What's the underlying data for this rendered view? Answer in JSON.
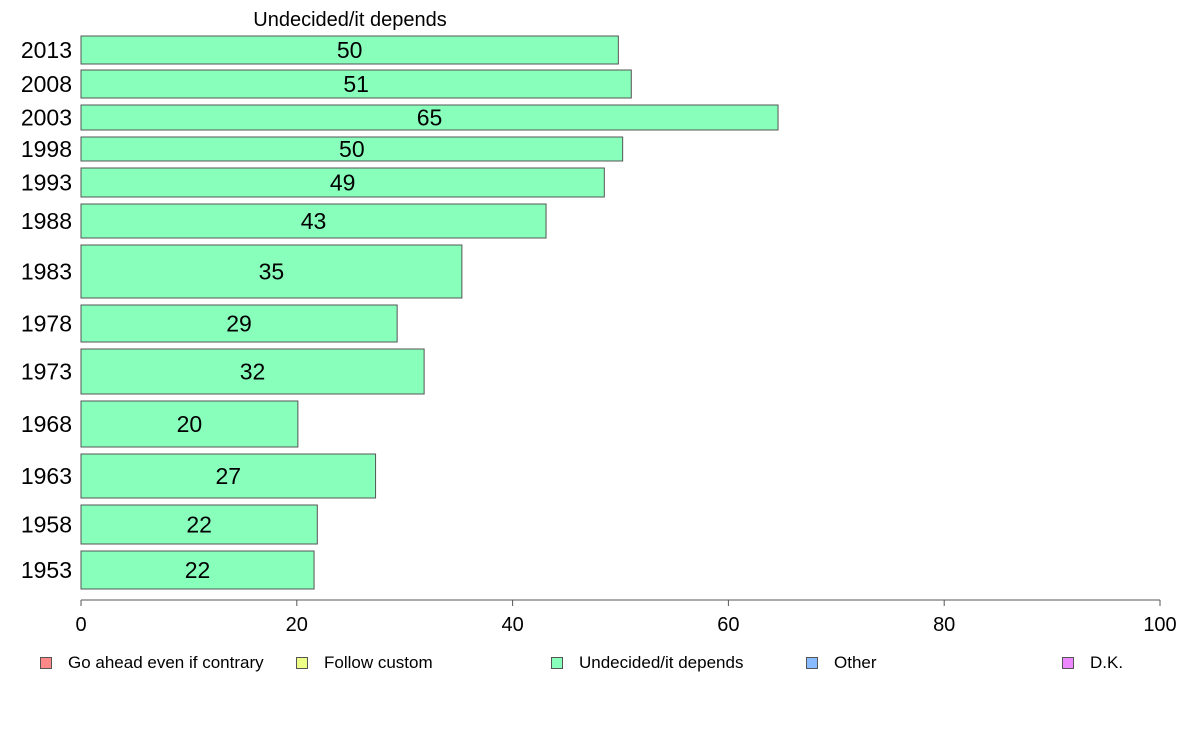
{
  "chart_data": {
    "type": "bar",
    "orientation": "horizontal",
    "title": "Undecided/it depends",
    "categories": [
      "2013",
      "2008",
      "2003",
      "1998",
      "1993",
      "1988",
      "1983",
      "1978",
      "1973",
      "1968",
      "1963",
      "1958",
      "1953"
    ],
    "series": [
      {
        "name": "Undecided/it depends",
        "values": [
          49.8,
          51.0,
          64.6,
          50.2,
          48.5,
          43.1,
          35.3,
          29.3,
          31.8,
          20.1,
          27.3,
          21.9,
          21.6
        ],
        "labels": [
          "50",
          "51",
          "65",
          "50",
          "49",
          "43",
          "35",
          "29",
          "32",
          "20",
          "27",
          "22",
          "22"
        ],
        "color": "#88ffbb"
      }
    ],
    "xlim": [
      0,
      100
    ],
    "xticks": [
      "0",
      "20",
      "40",
      "60",
      "80",
      "100"
    ],
    "xlabel": "",
    "ylabel": "",
    "grid": false,
    "legend_position": "bottom",
    "legend": [
      {
        "label": "Go ahead even if contrary",
        "color": "#ff8888"
      },
      {
        "label": "Follow custom",
        "color": "#eeff88"
      },
      {
        "label": "Undecided/it depends",
        "color": "#88ffbb"
      },
      {
        "label": "Other",
        "color": "#88bbff"
      },
      {
        "label": "D.K.",
        "color": "#ee88ff"
      }
    ]
  }
}
